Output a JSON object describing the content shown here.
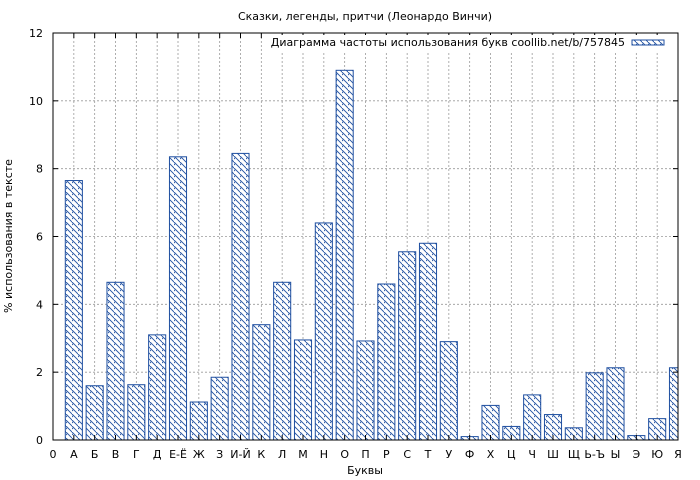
{
  "chart_data": {
    "type": "bar",
    "title": "Сказки, легенды, притчи (Леонардо Винчи)",
    "xlabel": "Буквы",
    "ylabel": "% использования в тексте",
    "ylim": [
      0,
      12
    ],
    "yticks": [
      0,
      2,
      4,
      6,
      8,
      10,
      12
    ],
    "grid": true,
    "legend_position": "top-right",
    "x_start_label": "0",
    "categories": [
      "А",
      "Б",
      "В",
      "Г",
      "Д",
      "Е-Ё",
      "Ж",
      "З",
      "И-Й",
      "К",
      "Л",
      "М",
      "Н",
      "О",
      "П",
      "Р",
      "С",
      "Т",
      "У",
      "Ф",
      "Х",
      "Ц",
      "Ч",
      "Ш",
      "Щ",
      "Ь-Ъ",
      "Ы",
      "Э",
      "Ю",
      "Я"
    ],
    "series": [
      {
        "name": "Диаграмма частоты использования букв coollib.net/b/757845",
        "color": "#1f4fa0",
        "values": [
          7.65,
          1.6,
          4.65,
          1.63,
          3.1,
          8.35,
          1.12,
          1.85,
          8.45,
          3.4,
          4.65,
          2.95,
          6.4,
          10.9,
          2.92,
          4.6,
          5.55,
          5.8,
          2.9,
          0.1,
          1.02,
          0.4,
          1.33,
          0.75,
          0.36,
          1.98,
          2.13,
          0.13,
          0.63,
          2.13
        ]
      }
    ]
  }
}
